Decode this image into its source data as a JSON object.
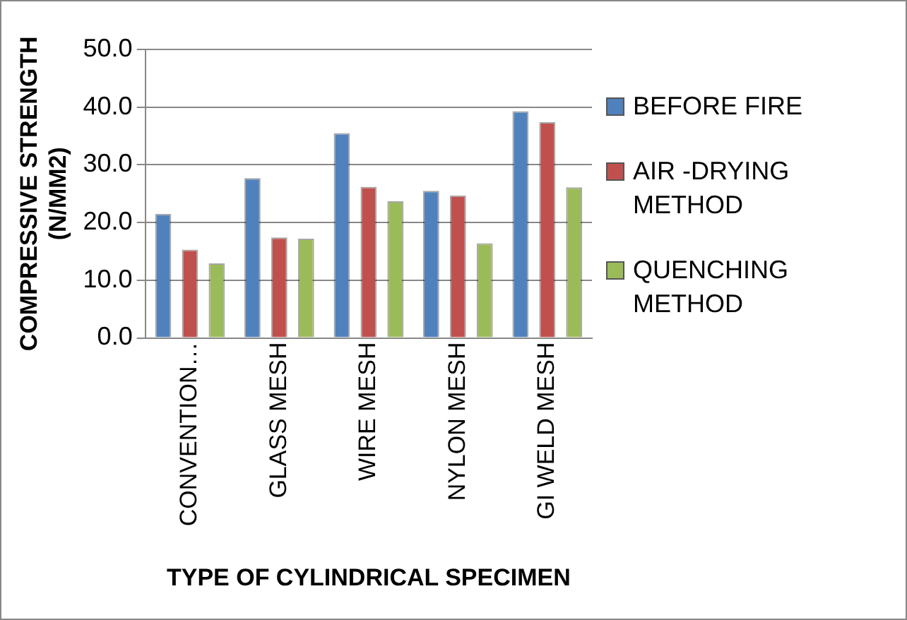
{
  "chart_data": {
    "type": "bar",
    "xlabel": "TYPE OF CYLINDRICAL SPECIMEN",
    "ylabel": "COMPRESSIVE STRENGTH (N/MM2)",
    "categories": [
      "CONVENTION…",
      "GLASS MESH",
      "WIRE MESH",
      "NYLON MESH",
      "GI WELD MESH"
    ],
    "series": [
      {
        "name": "BEFORE FIRE",
        "color": "#4f81bd",
        "values": [
          21.5,
          27.7,
          35.5,
          25.5,
          39.3
        ]
      },
      {
        "name": "AIR -DRYING METHOD",
        "color": "#c0504d",
        "values": [
          15.3,
          17.4,
          26.2,
          24.7,
          37.4
        ]
      },
      {
        "name": "QUENCHING METHOD",
        "color": "#9bbb59",
        "values": [
          12.9,
          17.2,
          23.7,
          16.4,
          26.1
        ]
      }
    ],
    "ylim": [
      0,
      50
    ],
    "yticks": [
      {
        "value": 0,
        "label": "0.0"
      },
      {
        "value": 10,
        "label": "10.0"
      },
      {
        "value": 20,
        "label": "20.0"
      },
      {
        "value": 30,
        "label": "30.0"
      },
      {
        "value": 40,
        "label": "40.0"
      },
      {
        "value": 50,
        "label": "50.0"
      }
    ],
    "grid": "y",
    "legend": "right"
  }
}
